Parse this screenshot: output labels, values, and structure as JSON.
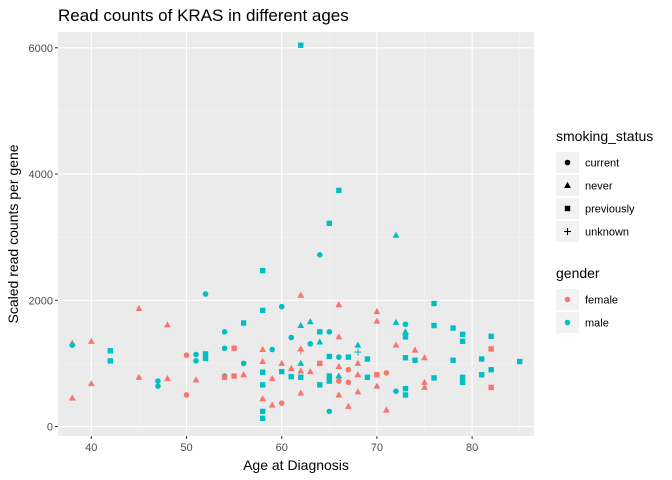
{
  "chart_data": {
    "type": "scatter",
    "title": "Read counts of KRAS in different ages",
    "xlabel": "Age at Diagnosis",
    "ylabel": "Scaled read counts per gene",
    "xlim": [
      36.5,
      86.5
    ],
    "ylim": [
      -150,
      6250
    ],
    "xticks": [
      40,
      50,
      60,
      70,
      80
    ],
    "yticks": [
      0,
      2000,
      4000,
      6000
    ],
    "grid": true,
    "legend_position": "right",
    "legends": [
      {
        "title": "smoking_status",
        "items": [
          {
            "label": "current",
            "shape": "circle"
          },
          {
            "label": "never",
            "shape": "triangle"
          },
          {
            "label": "previously",
            "shape": "square"
          },
          {
            "label": "unknown",
            "shape": "plus"
          }
        ]
      },
      {
        "title": "gender",
        "items": [
          {
            "label": "female",
            "color": "#F8766D"
          },
          {
            "label": "male",
            "color": "#00BFC4"
          }
        ]
      }
    ],
    "colors": {
      "female": "#F8766D",
      "male": "#00BFC4"
    },
    "points": [
      {
        "x": 38,
        "y": 1320,
        "g": "female",
        "s": "never"
      },
      {
        "x": 38,
        "y": 450,
        "g": "female",
        "s": "never"
      },
      {
        "x": 38,
        "y": 1290,
        "g": "male",
        "s": "current"
      },
      {
        "x": 40,
        "y": 1350,
        "g": "female",
        "s": "never"
      },
      {
        "x": 40,
        "y": 680,
        "g": "female",
        "s": "never"
      },
      {
        "x": 42,
        "y": 1200,
        "g": "male",
        "s": "previously"
      },
      {
        "x": 42,
        "y": 1040,
        "g": "male",
        "s": "previously"
      },
      {
        "x": 45,
        "y": 1870,
        "g": "female",
        "s": "never"
      },
      {
        "x": 45,
        "y": 780,
        "g": "female",
        "s": "never"
      },
      {
        "x": 47,
        "y": 720,
        "g": "male",
        "s": "current"
      },
      {
        "x": 47,
        "y": 640,
        "g": "male",
        "s": "current"
      },
      {
        "x": 48,
        "y": 1610,
        "g": "female",
        "s": "never"
      },
      {
        "x": 48,
        "y": 760,
        "g": "female",
        "s": "never"
      },
      {
        "x": 50,
        "y": 1130,
        "g": "female",
        "s": "current"
      },
      {
        "x": 50,
        "y": 500,
        "g": "female",
        "s": "current"
      },
      {
        "x": 51,
        "y": 1140,
        "g": "male",
        "s": "current"
      },
      {
        "x": 51,
        "y": 1040,
        "g": "male",
        "s": "current"
      },
      {
        "x": 51,
        "y": 740,
        "g": "female",
        "s": "never"
      },
      {
        "x": 52,
        "y": 2100,
        "g": "male",
        "s": "current"
      },
      {
        "x": 52,
        "y": 1150,
        "g": "male",
        "s": "previously"
      },
      {
        "x": 52,
        "y": 1080,
        "g": "male",
        "s": "previously"
      },
      {
        "x": 54,
        "y": 1500,
        "g": "male",
        "s": "current"
      },
      {
        "x": 54,
        "y": 1240,
        "g": "male",
        "s": "current"
      },
      {
        "x": 54,
        "y": 800,
        "g": "male",
        "s": "current"
      },
      {
        "x": 54,
        "y": 780,
        "g": "female",
        "s": "previously"
      },
      {
        "x": 55,
        "y": 1240,
        "g": "female",
        "s": "previously"
      },
      {
        "x": 55,
        "y": 800,
        "g": "female",
        "s": "previously"
      },
      {
        "x": 56,
        "y": 1640,
        "g": "male",
        "s": "previously"
      },
      {
        "x": 56,
        "y": 1000,
        "g": "male",
        "s": "current"
      },
      {
        "x": 56,
        "y": 820,
        "g": "female",
        "s": "never"
      },
      {
        "x": 58,
        "y": 2470,
        "g": "male",
        "s": "previously"
      },
      {
        "x": 58,
        "y": 1840,
        "g": "male",
        "s": "previously"
      },
      {
        "x": 58,
        "y": 1220,
        "g": "female",
        "s": "never"
      },
      {
        "x": 58,
        "y": 1030,
        "g": "female",
        "s": "never"
      },
      {
        "x": 58,
        "y": 860,
        "g": "male",
        "s": "previously"
      },
      {
        "x": 58,
        "y": 660,
        "g": "male",
        "s": "previously"
      },
      {
        "x": 58,
        "y": 440,
        "g": "female",
        "s": "never"
      },
      {
        "x": 58,
        "y": 240,
        "g": "male",
        "s": "previously"
      },
      {
        "x": 58,
        "y": 130,
        "g": "male",
        "s": "previously"
      },
      {
        "x": 59,
        "y": 1220,
        "g": "male",
        "s": "current"
      },
      {
        "x": 59,
        "y": 760,
        "g": "female",
        "s": "never"
      },
      {
        "x": 59,
        "y": 340,
        "g": "female",
        "s": "never"
      },
      {
        "x": 60,
        "y": 1900,
        "g": "male",
        "s": "current"
      },
      {
        "x": 60,
        "y": 1000,
        "g": "female",
        "s": "never"
      },
      {
        "x": 60,
        "y": 870,
        "g": "male",
        "s": "previously"
      },
      {
        "x": 60,
        "y": 370,
        "g": "female",
        "s": "current"
      },
      {
        "x": 61,
        "y": 1410,
        "g": "male",
        "s": "current"
      },
      {
        "x": 61,
        "y": 920,
        "g": "female",
        "s": "never"
      },
      {
        "x": 61,
        "y": 790,
        "g": "male",
        "s": "previously"
      },
      {
        "x": 62,
        "y": 6040,
        "g": "male",
        "s": "previously"
      },
      {
        "x": 62,
        "y": 2080,
        "g": "female",
        "s": "never"
      },
      {
        "x": 62,
        "y": 1600,
        "g": "male",
        "s": "never"
      },
      {
        "x": 62,
        "y": 1230,
        "g": "female",
        "s": "never"
      },
      {
        "x": 62,
        "y": 1200,
        "g": "female",
        "s": "unknown"
      },
      {
        "x": 62,
        "y": 1000,
        "g": "male",
        "s": "never"
      },
      {
        "x": 62,
        "y": 880,
        "g": "female",
        "s": "never"
      },
      {
        "x": 62,
        "y": 780,
        "g": "male",
        "s": "previously"
      },
      {
        "x": 62,
        "y": 530,
        "g": "female",
        "s": "never"
      },
      {
        "x": 63,
        "y": 1660,
        "g": "male",
        "s": "never"
      },
      {
        "x": 63,
        "y": 1310,
        "g": "male",
        "s": "current"
      },
      {
        "x": 63,
        "y": 870,
        "g": "female",
        "s": "never"
      },
      {
        "x": 64,
        "y": 2720,
        "g": "male",
        "s": "current"
      },
      {
        "x": 64,
        "y": 1500,
        "g": "male",
        "s": "previously"
      },
      {
        "x": 64,
        "y": 1340,
        "g": "male",
        "s": "never"
      },
      {
        "x": 64,
        "y": 1000,
        "g": "female",
        "s": "previously"
      },
      {
        "x": 64,
        "y": 660,
        "g": "male",
        "s": "previously"
      },
      {
        "x": 65,
        "y": 3220,
        "g": "male",
        "s": "previously"
      },
      {
        "x": 65,
        "y": 1500,
        "g": "male",
        "s": "current"
      },
      {
        "x": 65,
        "y": 1110,
        "g": "male",
        "s": "previously"
      },
      {
        "x": 65,
        "y": 800,
        "g": "male",
        "s": "previously"
      },
      {
        "x": 65,
        "y": 720,
        "g": "male",
        "s": "previously"
      },
      {
        "x": 65,
        "y": 240,
        "g": "male",
        "s": "current"
      },
      {
        "x": 66,
        "y": 3740,
        "g": "male",
        "s": "previously"
      },
      {
        "x": 66,
        "y": 1930,
        "g": "female",
        "s": "never"
      },
      {
        "x": 66,
        "y": 1420,
        "g": "female",
        "s": "never"
      },
      {
        "x": 66,
        "y": 1100,
        "g": "male",
        "s": "current"
      },
      {
        "x": 66,
        "y": 950,
        "g": "female",
        "s": "never"
      },
      {
        "x": 66,
        "y": 800,
        "g": "male",
        "s": "never"
      },
      {
        "x": 66,
        "y": 720,
        "g": "female",
        "s": "current"
      },
      {
        "x": 66,
        "y": 500,
        "g": "female",
        "s": "never"
      },
      {
        "x": 67,
        "y": 1100,
        "g": "male",
        "s": "previously"
      },
      {
        "x": 67,
        "y": 900,
        "g": "female",
        "s": "current"
      },
      {
        "x": 67,
        "y": 700,
        "g": "female",
        "s": "current"
      },
      {
        "x": 67,
        "y": 320,
        "g": "female",
        "s": "never"
      },
      {
        "x": 68,
        "y": 1290,
        "g": "male",
        "s": "never"
      },
      {
        "x": 68,
        "y": 1180,
        "g": "male",
        "s": "unknown"
      },
      {
        "x": 68,
        "y": 1000,
        "g": "female",
        "s": "never"
      },
      {
        "x": 68,
        "y": 820,
        "g": "female",
        "s": "never"
      },
      {
        "x": 68,
        "y": 550,
        "g": "female",
        "s": "never"
      },
      {
        "x": 69,
        "y": 1070,
        "g": "male",
        "s": "previously"
      },
      {
        "x": 69,
        "y": 780,
        "g": "male",
        "s": "previously"
      },
      {
        "x": 70,
        "y": 1820,
        "g": "female",
        "s": "never"
      },
      {
        "x": 70,
        "y": 1670,
        "g": "female",
        "s": "never"
      },
      {
        "x": 70,
        "y": 820,
        "g": "female",
        "s": "previously"
      },
      {
        "x": 70,
        "y": 640,
        "g": "female",
        "s": "never"
      },
      {
        "x": 71,
        "y": 850,
        "g": "female",
        "s": "current"
      },
      {
        "x": 71,
        "y": 260,
        "g": "female",
        "s": "never"
      },
      {
        "x": 72,
        "y": 3030,
        "g": "male",
        "s": "never"
      },
      {
        "x": 72,
        "y": 1650,
        "g": "male",
        "s": "never"
      },
      {
        "x": 72,
        "y": 1290,
        "g": "female",
        "s": "never"
      },
      {
        "x": 72,
        "y": 560,
        "g": "male",
        "s": "current"
      },
      {
        "x": 73,
        "y": 1620,
        "g": "male",
        "s": "current"
      },
      {
        "x": 73,
        "y": 1500,
        "g": "male",
        "s": "never"
      },
      {
        "x": 73,
        "y": 1420,
        "g": "male",
        "s": "previously"
      },
      {
        "x": 73,
        "y": 1090,
        "g": "male",
        "s": "previously"
      },
      {
        "x": 73,
        "y": 600,
        "g": "male",
        "s": "previously"
      },
      {
        "x": 73,
        "y": 500,
        "g": "male",
        "s": "previously"
      },
      {
        "x": 74,
        "y": 1210,
        "g": "female",
        "s": "never"
      },
      {
        "x": 74,
        "y": 1050,
        "g": "male",
        "s": "previously"
      },
      {
        "x": 75,
        "y": 1090,
        "g": "female",
        "s": "never"
      },
      {
        "x": 75,
        "y": 700,
        "g": "female",
        "s": "never"
      },
      {
        "x": 75,
        "y": 620,
        "g": "female",
        "s": "never"
      },
      {
        "x": 76,
        "y": 1950,
        "g": "male",
        "s": "previously"
      },
      {
        "x": 76,
        "y": 1600,
        "g": "male",
        "s": "previously"
      },
      {
        "x": 76,
        "y": 770,
        "g": "male",
        "s": "previously"
      },
      {
        "x": 78,
        "y": 1560,
        "g": "male",
        "s": "previously"
      },
      {
        "x": 78,
        "y": 1050,
        "g": "male",
        "s": "previously"
      },
      {
        "x": 79,
        "y": 1460,
        "g": "male",
        "s": "previously"
      },
      {
        "x": 79,
        "y": 1350,
        "g": "male",
        "s": "previously"
      },
      {
        "x": 79,
        "y": 780,
        "g": "male",
        "s": "previously"
      },
      {
        "x": 79,
        "y": 700,
        "g": "male",
        "s": "previously"
      },
      {
        "x": 81,
        "y": 1070,
        "g": "male",
        "s": "previously"
      },
      {
        "x": 81,
        "y": 820,
        "g": "male",
        "s": "previously"
      },
      {
        "x": 82,
        "y": 1430,
        "g": "male",
        "s": "previously"
      },
      {
        "x": 82,
        "y": 1230,
        "g": "female",
        "s": "previously"
      },
      {
        "x": 82,
        "y": 900,
        "g": "male",
        "s": "previously"
      },
      {
        "x": 82,
        "y": 620,
        "g": "female",
        "s": "previously"
      },
      {
        "x": 85,
        "y": 1030,
        "g": "male",
        "s": "previously"
      }
    ]
  }
}
